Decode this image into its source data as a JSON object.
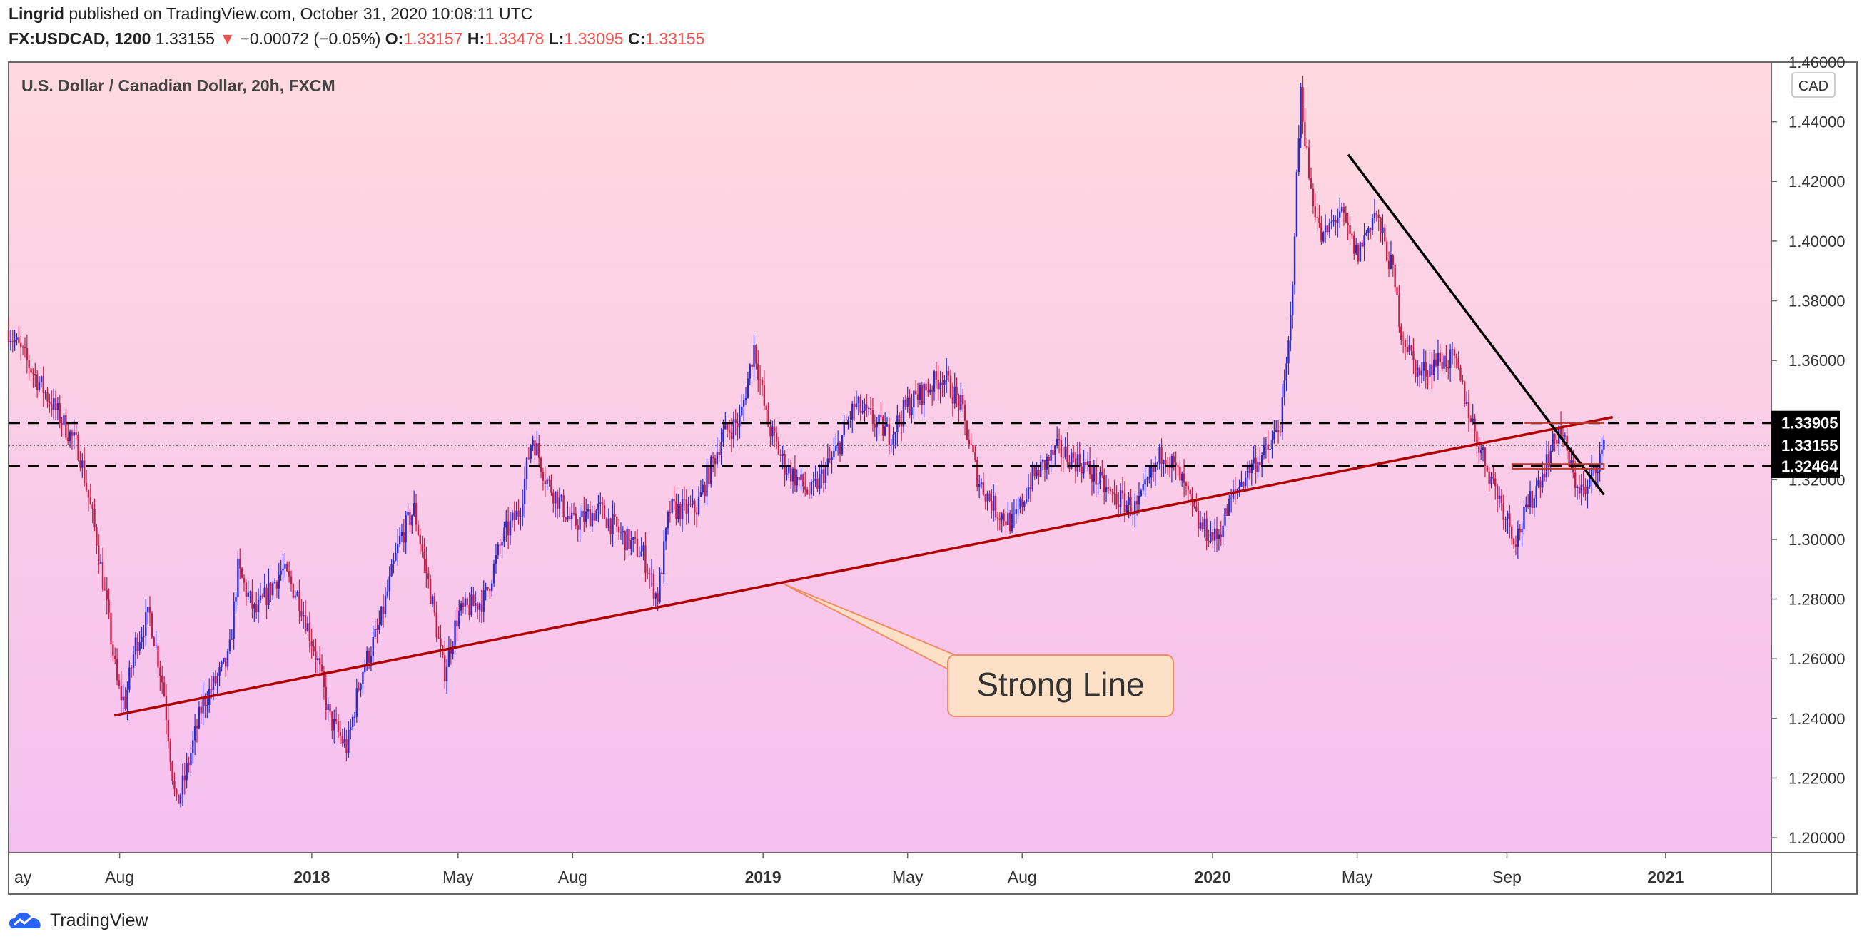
{
  "header": {
    "author": "Lingrid",
    "published_text": "published on TradingView.com, October 31, 2020 10:08:11 UTC",
    "symbol": "FX:USDCAD, 1200",
    "last": "1.33155",
    "arrow": "▼",
    "change": "−0.00072 (−0.05%)",
    "o_label": "O:",
    "o_value": "1.33157",
    "h_label": "H:",
    "h_value": "1.33478",
    "l_label": "L:",
    "l_value": "1.33095",
    "c_label": "C:",
    "c_value": "1.33155"
  },
  "footer": {
    "brand": "TradingView"
  },
  "colors": {
    "bg_top": "#ffd9df",
    "bg_bottom": "#f5c0f0",
    "candle_up": "#2a2ad0",
    "candle_down": "#c21f4a",
    "trendline_support": "#b00000",
    "trendline_resistance": "#000000",
    "callout_bg": "#fde0c5",
    "callout_border": "#f08c66",
    "negative": "#ef5350"
  },
  "chart_data": {
    "type": "candlestick",
    "title": "U.S. Dollar / Canadian Dollar, 20h, FXCM",
    "currency_label": "CAD",
    "ylim": [
      1.195,
      1.46
    ],
    "y_ticks": [
      "1.20000",
      "1.22000",
      "1.24000",
      "1.26000",
      "1.28000",
      "1.30000",
      "1.32000",
      "1.36000",
      "1.38000",
      "1.40000",
      "1.42000",
      "1.44000"
    ],
    "top_partial_tick": "1.46000",
    "x_ticks": [
      {
        "label": "ay",
        "t": 0.0
      },
      {
        "label": "Aug",
        "t": 0.063
      },
      {
        "label": "2018",
        "t": 0.172
      },
      {
        "label": "May",
        "t": 0.255
      },
      {
        "label": "Aug",
        "t": 0.32
      },
      {
        "label": "2019",
        "t": 0.428
      },
      {
        "label": "May",
        "t": 0.51
      },
      {
        "label": "Aug",
        "t": 0.575
      },
      {
        "label": "2020",
        "t": 0.683
      },
      {
        "label": "May",
        "t": 0.765
      },
      {
        "label": "Sep",
        "t": 0.85
      },
      {
        "label": "2021",
        "t": 0.94
      }
    ],
    "price_path": [
      [
        0.0,
        1.37
      ],
      [
        0.02,
        1.35
      ],
      [
        0.04,
        1.33
      ],
      [
        0.05,
        1.3
      ],
      [
        0.055,
        1.28
      ],
      [
        0.062,
        1.25
      ],
      [
        0.066,
        1.245
      ],
      [
        0.072,
        1.265
      ],
      [
        0.08,
        1.275
      ],
      [
        0.088,
        1.25
      ],
      [
        0.095,
        1.21
      ],
      [
        0.1,
        1.22
      ],
      [
        0.11,
        1.245
      ],
      [
        0.125,
        1.26
      ],
      [
        0.13,
        1.29
      ],
      [
        0.14,
        1.275
      ],
      [
        0.155,
        1.29
      ],
      [
        0.165,
        1.28
      ],
      [
        0.175,
        1.26
      ],
      [
        0.182,
        1.24
      ],
      [
        0.192,
        1.23
      ],
      [
        0.2,
        1.255
      ],
      [
        0.21,
        1.27
      ],
      [
        0.222,
        1.3
      ],
      [
        0.23,
        1.31
      ],
      [
        0.24,
        1.28
      ],
      [
        0.247,
        1.255
      ],
      [
        0.255,
        1.275
      ],
      [
        0.27,
        1.28
      ],
      [
        0.28,
        1.3
      ],
      [
        0.29,
        1.31
      ],
      [
        0.297,
        1.335
      ],
      [
        0.305,
        1.32
      ],
      [
        0.32,
        1.305
      ],
      [
        0.335,
        1.31
      ],
      [
        0.35,
        1.3
      ],
      [
        0.36,
        1.295
      ],
      [
        0.368,
        1.28
      ],
      [
        0.375,
        1.31
      ],
      [
        0.39,
        1.31
      ],
      [
        0.405,
        1.335
      ],
      [
        0.415,
        1.34
      ],
      [
        0.423,
        1.365
      ],
      [
        0.43,
        1.34
      ],
      [
        0.44,
        1.325
      ],
      [
        0.455,
        1.315
      ],
      [
        0.47,
        1.33
      ],
      [
        0.48,
        1.345
      ],
      [
        0.5,
        1.335
      ],
      [
        0.51,
        1.345
      ],
      [
        0.52,
        1.35
      ],
      [
        0.53,
        1.355
      ],
      [
        0.54,
        1.345
      ],
      [
        0.55,
        1.32
      ],
      [
        0.56,
        1.31
      ],
      [
        0.57,
        1.305
      ],
      [
        0.58,
        1.32
      ],
      [
        0.595,
        1.33
      ],
      [
        0.61,
        1.325
      ],
      [
        0.625,
        1.315
      ],
      [
        0.64,
        1.31
      ],
      [
        0.655,
        1.33
      ],
      [
        0.665,
        1.32
      ],
      [
        0.675,
        1.305
      ],
      [
        0.685,
        1.3
      ],
      [
        0.695,
        1.315
      ],
      [
        0.705,
        1.325
      ],
      [
        0.715,
        1.33
      ],
      [
        0.722,
        1.34
      ],
      [
        0.727,
        1.37
      ],
      [
        0.73,
        1.41
      ],
      [
        0.733,
        1.45
      ],
      [
        0.738,
        1.42
      ],
      [
        0.745,
        1.4
      ],
      [
        0.755,
        1.41
      ],
      [
        0.765,
        1.395
      ],
      [
        0.775,
        1.41
      ],
      [
        0.785,
        1.39
      ],
      [
        0.79,
        1.37
      ],
      [
        0.8,
        1.355
      ],
      [
        0.81,
        1.36
      ],
      [
        0.82,
        1.36
      ],
      [
        0.835,
        1.33
      ],
      [
        0.845,
        1.315
      ],
      [
        0.855,
        1.3
      ],
      [
        0.865,
        1.315
      ],
      [
        0.875,
        1.33
      ],
      [
        0.88,
        1.338
      ],
      [
        0.888,
        1.32
      ],
      [
        0.895,
        1.315
      ],
      [
        0.9,
        1.325
      ],
      [
        0.905,
        1.33
      ]
    ],
    "levels": [
      {
        "value": 1.33905,
        "label": "1.33905"
      },
      {
        "value": 1.33155,
        "label": "1.33155"
      },
      {
        "value": 1.32464,
        "label": "1.32464"
      }
    ],
    "support_line": {
      "from": [
        0.06,
        1.241
      ],
      "to": [
        0.91,
        1.341
      ]
    },
    "resistance_line": {
      "from": [
        0.76,
        1.429
      ],
      "to": [
        0.905,
        1.315
      ]
    },
    "annotation": {
      "text": "Strong Line",
      "anchor": [
        0.44,
        1.285
      ]
    }
  }
}
